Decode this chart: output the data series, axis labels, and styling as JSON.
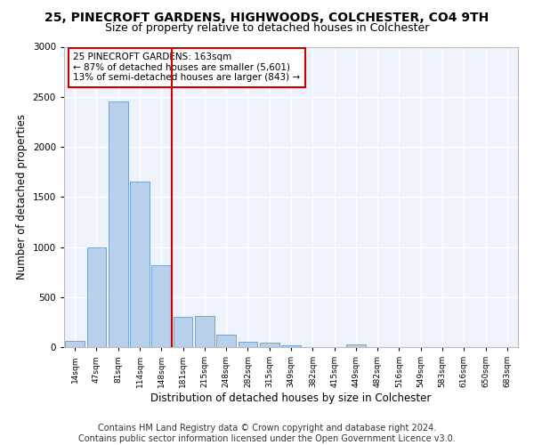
{
  "title1": "25, PINECROFT GARDENS, HIGHWOODS, COLCHESTER, CO4 9TH",
  "title2": "Size of property relative to detached houses in Colchester",
  "xlabel": "Distribution of detached houses by size in Colchester",
  "ylabel": "Number of detached properties",
  "categories": [
    "14sqm",
    "47sqm",
    "81sqm",
    "114sqm",
    "148sqm",
    "181sqm",
    "215sqm",
    "248sqm",
    "282sqm",
    "315sqm",
    "349sqm",
    "382sqm",
    "415sqm",
    "449sqm",
    "482sqm",
    "516sqm",
    "549sqm",
    "583sqm",
    "616sqm",
    "650sqm",
    "683sqm"
  ],
  "values": [
    60,
    1000,
    2450,
    1650,
    820,
    300,
    310,
    125,
    50,
    45,
    20,
    0,
    0,
    30,
    0,
    0,
    0,
    0,
    0,
    0,
    0
  ],
  "bar_color": "#b8d0ea",
  "bar_edge_color": "#6699cc",
  "vline_x": 4.5,
  "vline_color": "#cc0000",
  "annotation_text": "25 PINECROFT GARDENS: 163sqm\n← 87% of detached houses are smaller (5,601)\n13% of semi-detached houses are larger (843) →",
  "annotation_box_color": "#ffffff",
  "annotation_box_edge": "#cc0000",
  "ylim": [
    0,
    3000
  ],
  "yticks": [
    0,
    500,
    1000,
    1500,
    2000,
    2500,
    3000
  ],
  "background_color": "#eef2fb",
  "grid_color": "#ffffff",
  "footer1": "Contains HM Land Registry data © Crown copyright and database right 2024.",
  "footer2": "Contains public sector information licensed under the Open Government Licence v3.0.",
  "title1_fontsize": 10,
  "title2_fontsize": 9,
  "xlabel_fontsize": 8.5,
  "ylabel_fontsize": 8.5,
  "footer_fontsize": 7
}
